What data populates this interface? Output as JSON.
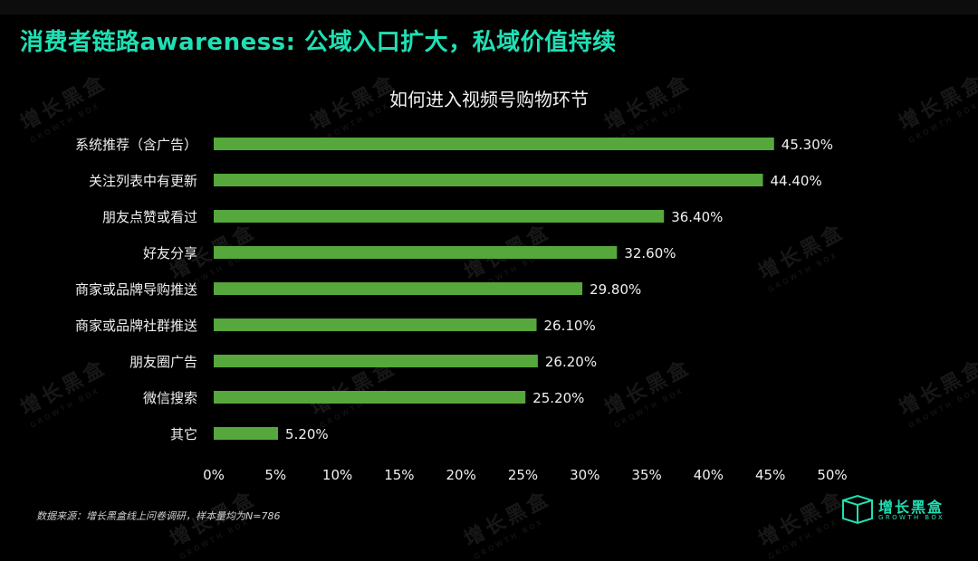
{
  "slide": {
    "title": "消费者链路awareness: 公域入口扩大，私域价值持续",
    "footnote": "数据来源：增长黑盒线上问卷调研，样本量均为N=786"
  },
  "brand": {
    "name": "增长黑盒",
    "sub": "GROWTH BOX",
    "color": "#1fe0b4",
    "icon": "box-logo-icon"
  },
  "watermark": {
    "text": "增长黑盒",
    "sub": "GROWTH BOX"
  },
  "chart_data": {
    "type": "bar",
    "orientation": "horizontal",
    "title": "如何进入视频号购物环节",
    "categories": [
      "系统推荐（含广告）",
      "关注列表中有更新",
      "朋友点赞或看过",
      "好友分享",
      "商家或品牌导购推送",
      "商家或品牌社群推送",
      "朋友圈广告",
      "微信搜索",
      "其它"
    ],
    "values": [
      45.3,
      44.4,
      36.4,
      32.6,
      29.8,
      26.1,
      26.2,
      25.2,
      5.2
    ],
    "value_labels": [
      "45.30%",
      "44.40%",
      "36.40%",
      "32.60%",
      "29.80%",
      "26.10%",
      "26.20%",
      "25.20%",
      "5.20%"
    ],
    "xlim": [
      0,
      50
    ],
    "xticks": [
      0,
      5,
      10,
      15,
      20,
      25,
      30,
      35,
      40,
      45,
      50
    ],
    "xtick_labels": [
      "0%",
      "5%",
      "10%",
      "15%",
      "20%",
      "25%",
      "30%",
      "35%",
      "40%",
      "45%",
      "50%"
    ],
    "bar_color": "#56a83c",
    "grid": false,
    "legend": "none"
  }
}
